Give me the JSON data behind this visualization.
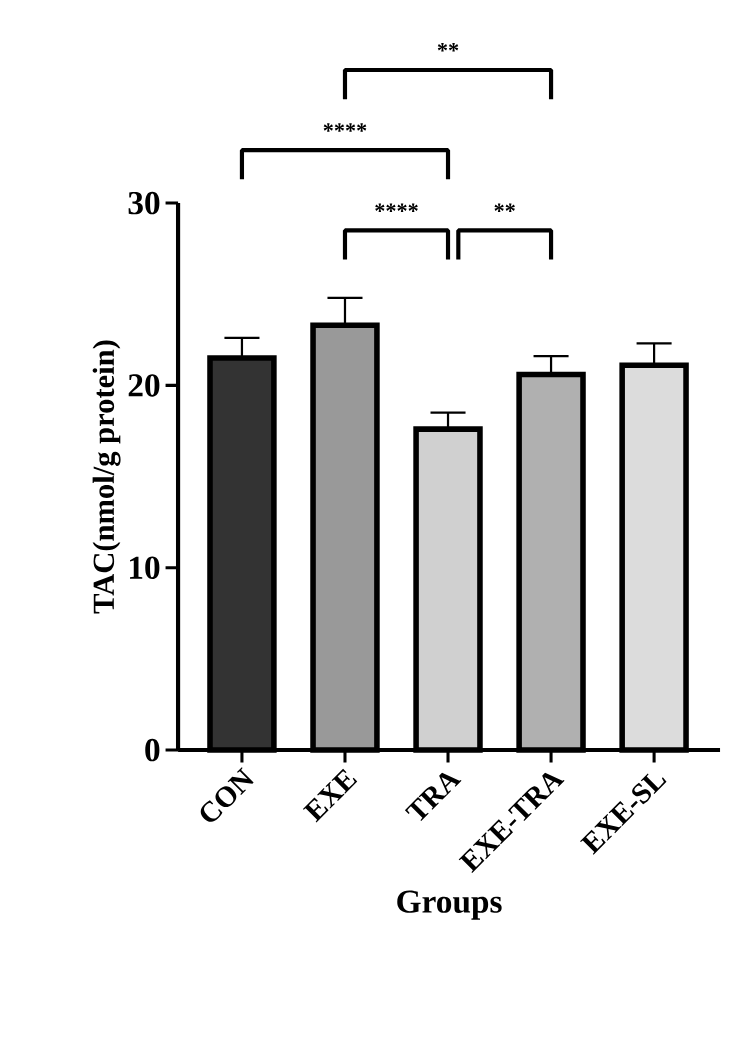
{
  "chart_data": {
    "type": "bar",
    "xlabel": "Groups",
    "ylabel": "TAC(nmol/g protein)",
    "categories": [
      "CON",
      "EXE",
      "TRA",
      "EXE-TRA",
      "EXE-SL"
    ],
    "values": [
      21.5,
      23.3,
      17.6,
      20.6,
      21.1
    ],
    "errors": [
      1.1,
      1.5,
      0.9,
      1.0,
      1.2
    ],
    "colors": [
      "#333333",
      "#999999",
      "#d0d0d0",
      "#b0b0b0",
      "#dcdcdc"
    ],
    "ylim": [
      0,
      30
    ],
    "yticks": [
      0,
      10,
      20,
      30
    ],
    "grid": false,
    "annotations": [
      "****",
      "**",
      "****",
      "**"
    ]
  }
}
